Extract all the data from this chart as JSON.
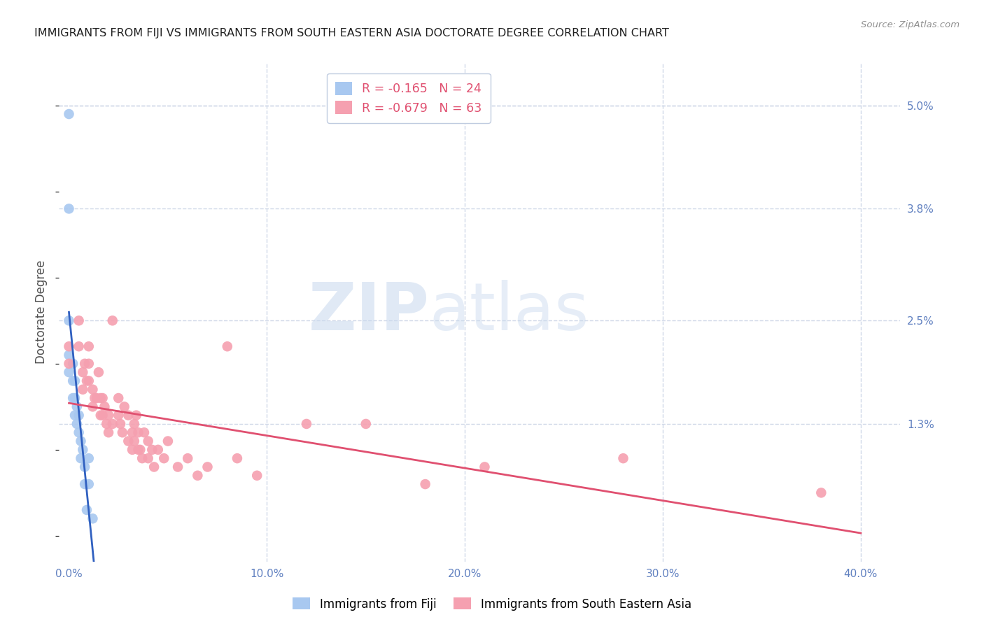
{
  "title": "IMMIGRANTS FROM FIJI VS IMMIGRANTS FROM SOUTH EASTERN ASIA DOCTORATE DEGREE CORRELATION CHART",
  "source": "Source: ZipAtlas.com",
  "ylabel": "Doctorate Degree",
  "x_ticks": [
    0.0,
    10.0,
    20.0,
    30.0,
    40.0
  ],
  "x_tick_labels": [
    "0.0%",
    "10.0%",
    "20.0%",
    "30.0%",
    "40.0%"
  ],
  "y_ticks": [
    0.0,
    1.3,
    2.5,
    3.8,
    5.0
  ],
  "y_tick_labels_right": [
    "",
    "1.3%",
    "2.5%",
    "3.8%",
    "5.0%"
  ],
  "xlim": [
    -0.5,
    42.0
  ],
  "ylim": [
    -0.3,
    5.5
  ],
  "fiji_R": "-0.165",
  "fiji_N": "24",
  "sea_R": "-0.679",
  "sea_N": "63",
  "fiji_color": "#a8c8f0",
  "sea_color": "#f5a0b0",
  "fiji_trend_color": "#3060c0",
  "sea_trend_color": "#e05070",
  "fiji_x": [
    0.0,
    0.0,
    0.0,
    0.0,
    0.0,
    0.2,
    0.2,
    0.2,
    0.3,
    0.3,
    0.3,
    0.4,
    0.4,
    0.5,
    0.5,
    0.6,
    0.6,
    0.7,
    0.8,
    0.8,
    0.9,
    1.0,
    1.0,
    1.2
  ],
  "fiji_y": [
    4.9,
    3.8,
    2.5,
    2.1,
    1.9,
    2.0,
    1.8,
    1.6,
    1.8,
    1.6,
    1.4,
    1.5,
    1.3,
    1.4,
    1.2,
    1.1,
    0.9,
    1.0,
    0.8,
    0.6,
    0.3,
    0.9,
    0.6,
    0.2
  ],
  "sea_x": [
    0.0,
    0.0,
    0.5,
    0.5,
    0.7,
    0.7,
    0.8,
    0.9,
    1.0,
    1.0,
    1.0,
    1.2,
    1.2,
    1.3,
    1.4,
    1.5,
    1.6,
    1.6,
    1.7,
    1.7,
    1.8,
    1.9,
    2.0,
    2.0,
    2.2,
    2.2,
    2.5,
    2.5,
    2.6,
    2.7,
    2.8,
    3.0,
    3.0,
    3.2,
    3.2,
    3.3,
    3.3,
    3.4,
    3.5,
    3.5,
    3.6,
    3.7,
    3.8,
    4.0,
    4.0,
    4.2,
    4.3,
    4.5,
    4.8,
    5.0,
    5.5,
    6.0,
    6.5,
    7.0,
    8.0,
    8.5,
    9.5,
    12.0,
    15.0,
    18.0,
    21.0,
    28.0,
    38.0
  ],
  "sea_y": [
    2.2,
    2.0,
    2.5,
    2.2,
    1.9,
    1.7,
    2.0,
    1.8,
    2.2,
    2.0,
    1.8,
    1.7,
    1.5,
    1.6,
    1.6,
    1.9,
    1.6,
    1.4,
    1.6,
    1.4,
    1.5,
    1.3,
    1.4,
    1.2,
    2.5,
    1.3,
    1.6,
    1.4,
    1.3,
    1.2,
    1.5,
    1.4,
    1.1,
    1.2,
    1.0,
    1.3,
    1.1,
    1.4,
    1.0,
    1.2,
    1.0,
    0.9,
    1.2,
    1.1,
    0.9,
    1.0,
    0.8,
    1.0,
    0.9,
    1.1,
    0.8,
    0.9,
    0.7,
    0.8,
    2.2,
    0.9,
    0.7,
    1.3,
    1.3,
    0.6,
    0.8,
    0.9,
    0.5
  ],
  "watermark_zip": "ZIP",
  "watermark_atlas": "atlas",
  "background_color": "#ffffff",
  "grid_color": "#d0d8e8",
  "axis_color": "#6080c0",
  "legend_r_color": "#e05070",
  "legend_n_color": "#3060c0"
}
